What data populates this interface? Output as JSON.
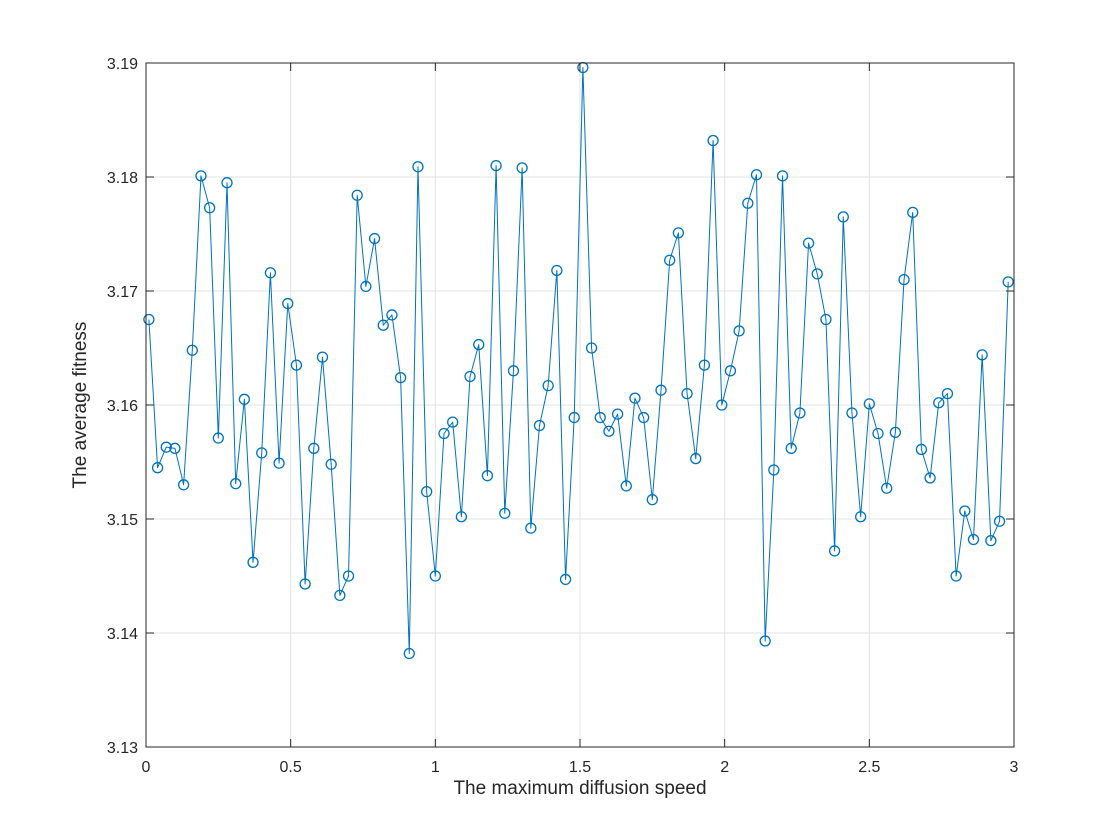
{
  "chart_data": {
    "type": "line",
    "title": "",
    "xlabel": "The maximum diffusion speed",
    "ylabel": "The average fitness",
    "xlim": [
      0,
      3
    ],
    "ylim": [
      3.13,
      3.19
    ],
    "x_ticks": [
      "0",
      "0.5",
      "1",
      "1.5",
      "2",
      "2.5",
      "3"
    ],
    "y_ticks": [
      "3.13",
      "3.14",
      "3.15",
      "3.16",
      "3.17",
      "3.18",
      "3.19"
    ],
    "grid": true,
    "legend": "none",
    "series": [
      {
        "color": "#0072BD",
        "marker": "circle",
        "x": [
          0.01,
          0.04,
          0.07,
          0.1,
          0.13,
          0.16,
          0.19,
          0.22,
          0.25,
          0.28,
          0.31,
          0.34,
          0.37,
          0.4,
          0.43,
          0.46,
          0.49,
          0.52,
          0.55,
          0.58,
          0.61,
          0.64,
          0.67,
          0.7,
          0.73,
          0.76,
          0.79,
          0.82,
          0.85,
          0.88,
          0.91,
          0.94,
          0.97,
          1.0,
          1.03,
          1.06,
          1.09,
          1.12,
          1.15,
          1.18,
          1.21,
          1.24,
          1.27,
          1.3,
          1.33,
          1.36,
          1.39,
          1.42,
          1.45,
          1.48,
          1.51,
          1.54,
          1.57,
          1.6,
          1.63,
          1.66,
          1.69,
          1.72,
          1.75,
          1.78,
          1.81,
          1.84,
          1.87,
          1.9,
          1.93,
          1.96,
          1.99,
          2.02,
          2.05,
          2.08,
          2.11,
          2.14,
          2.17,
          2.2,
          2.23,
          2.26,
          2.29,
          2.32,
          2.35,
          2.38,
          2.41,
          2.44,
          2.47,
          2.5,
          2.53,
          2.56,
          2.59,
          2.62,
          2.65,
          2.68,
          2.71,
          2.74,
          2.77,
          2.8,
          2.83,
          2.86,
          2.89,
          2.92,
          2.95,
          2.98
        ],
        "y": [
          3.1675,
          3.1545,
          3.1563,
          3.1562,
          3.153,
          3.1648,
          3.1801,
          3.1773,
          3.1571,
          3.1795,
          3.1531,
          3.1605,
          3.1462,
          3.1558,
          3.1716,
          3.1549,
          3.1689,
          3.1635,
          3.1443,
          3.1562,
          3.1642,
          3.1548,
          3.1433,
          3.145,
          3.1784,
          3.1704,
          3.1746,
          3.167,
          3.1679,
          3.1624,
          3.1382,
          3.1809,
          3.1524,
          3.145,
          3.1575,
          3.1585,
          3.1502,
          3.1625,
          3.1653,
          3.1538,
          3.181,
          3.1505,
          3.163,
          3.1808,
          3.1492,
          3.1582,
          3.1617,
          3.1718,
          3.1447,
          3.1589,
          3.1896,
          3.165,
          3.1589,
          3.1577,
          3.1592,
          3.1529,
          3.1606,
          3.1589,
          3.1517,
          3.1613,
          3.1727,
          3.1751,
          3.161,
          3.1553,
          3.1635,
          3.1832,
          3.16,
          3.163,
          3.1665,
          3.1777,
          3.1802,
          3.1393,
          3.1543,
          3.1801,
          3.1562,
          3.1593,
          3.1742,
          3.1715,
          3.1675,
          3.1472,
          3.1765,
          3.1593,
          3.1502,
          3.1601,
          3.1575,
          3.1527,
          3.1576,
          3.171,
          3.1769,
          3.1561,
          3.1536,
          3.1602,
          3.161,
          3.145,
          3.1507,
          3.1482,
          3.1644,
          3.1481,
          3.1498,
          3.1708
        ]
      }
    ]
  }
}
